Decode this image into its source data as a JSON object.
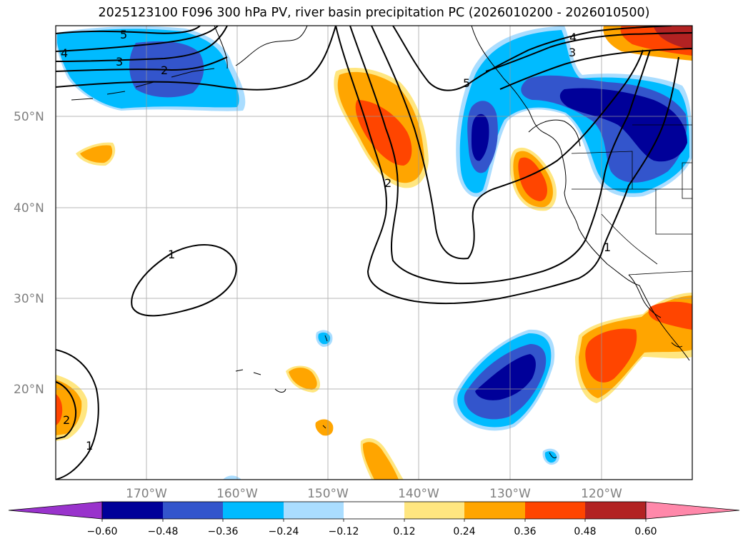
{
  "title": "2025123100 F096 300 hPa PV, river basin precipitation PC (2026010200 - 2026010500)",
  "map": {
    "lat_labels": [
      "50°N",
      "40°N",
      "30°N",
      "20°N"
    ],
    "lon_labels": [
      "170°W",
      "160°W",
      "150°W",
      "140°W",
      "130°W",
      "120°W"
    ],
    "pv_contour_labels": [
      "5",
      "4",
      "3",
      "2",
      "5",
      "4",
      "3",
      "2",
      "1",
      "1",
      "2",
      "1"
    ]
  },
  "colorbar": {
    "tick_labels": [
      "−0.60",
      "−0.48",
      "−0.36",
      "−0.24",
      "−0.12",
      "0.12",
      "0.24",
      "0.36",
      "0.48",
      "0.60"
    ],
    "colors": [
      "#9933cc",
      "#000099",
      "#3355cc",
      "#00bbff",
      "#aaddff",
      "#ffffff",
      "#ffe680",
      "#ffa500",
      "#ff4500",
      "#b22222",
      "#ff88aa"
    ]
  }
}
